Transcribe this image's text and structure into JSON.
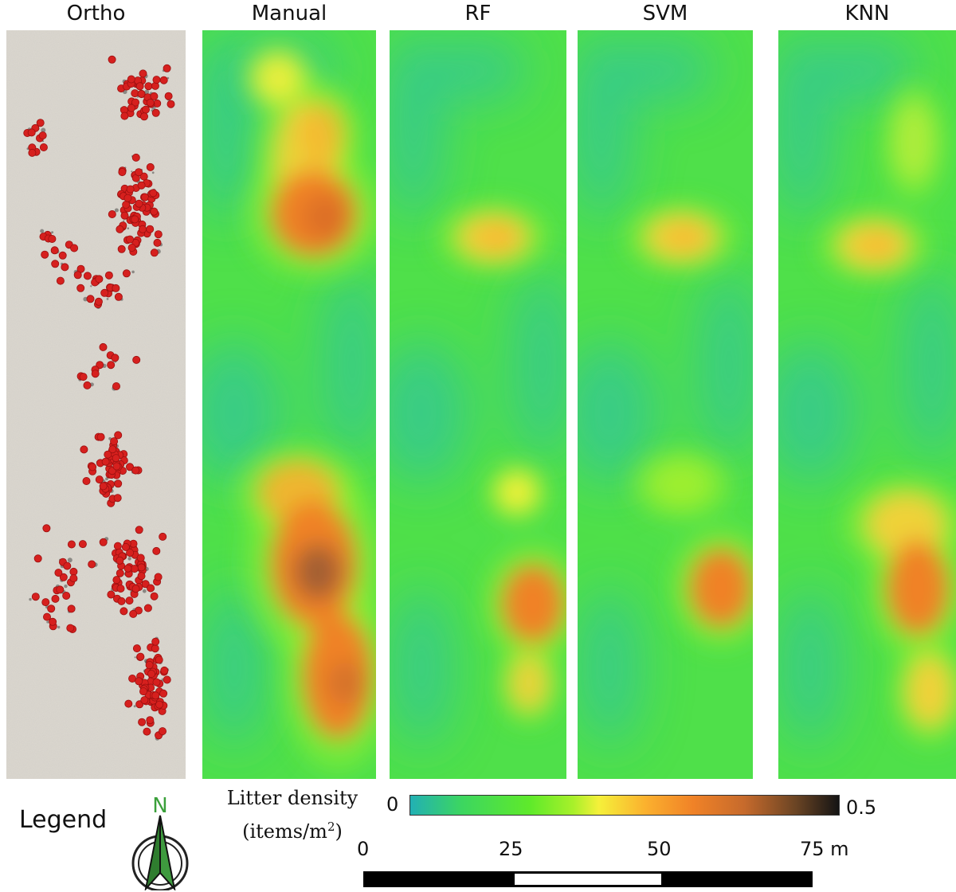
{
  "panels": [
    {
      "id": "ortho",
      "title": "Ortho"
    },
    {
      "id": "manual",
      "title": "Manual"
    },
    {
      "id": "rf",
      "title": "RF"
    },
    {
      "id": "svm",
      "title": "SVM"
    },
    {
      "id": "knn",
      "title": "KNN"
    }
  ],
  "legend": {
    "label": "Legend",
    "north_letter": "N",
    "density_label_line1": "Litter density",
    "density_label_line2": "(items/m",
    "density_label_sup": "2",
    "density_label_close": ")",
    "colorbar_min": "0",
    "colorbar_max": "0.5"
  },
  "scale": {
    "ticks": [
      "0",
      "25",
      "50",
      "75 m"
    ]
  },
  "colors": {
    "low": "#22b0b4",
    "mid": "#5fea2a",
    "high": "#f08227",
    "max": "#141414",
    "marker": "#d6201e"
  }
}
